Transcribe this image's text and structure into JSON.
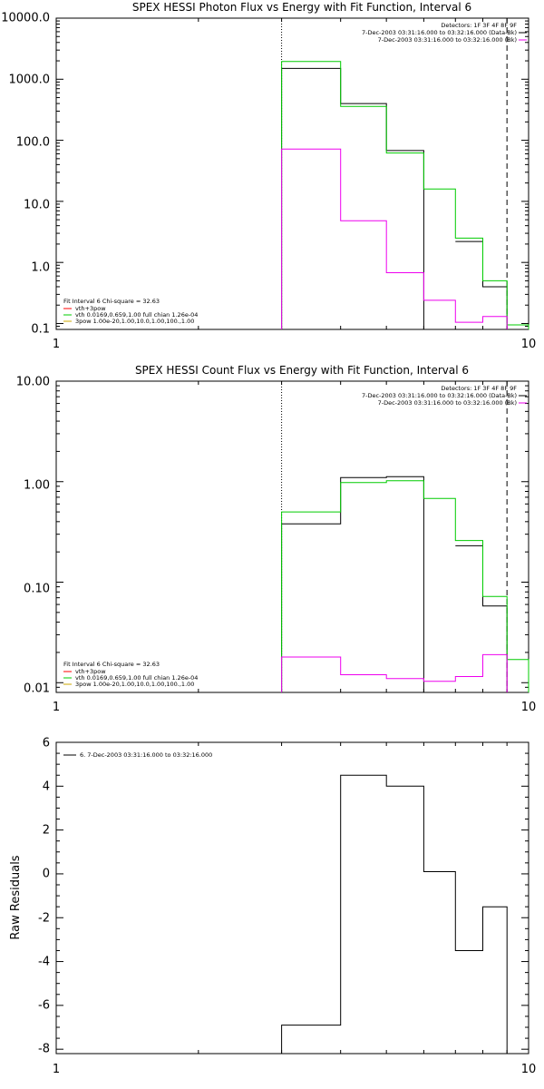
{
  "chart_data": [
    {
      "type": "line",
      "title": "SPEX HESSI Photon Flux vs Energy with Fit Function, Interval 6",
      "ylabel": "",
      "xlabel": "",
      "xscale": "log",
      "yscale": "log",
      "xlim": [
        1,
        10
      ],
      "ylim": [
        0.08,
        10000
      ],
      "x_tick_labels": [
        "1",
        "10"
      ],
      "y_tick_labels": [
        "0.1",
        "1.0",
        "10.0",
        "100.0",
        "1000.0",
        "10000.0"
      ],
      "legend_top_right": [
        "Detectors: 1F 3F 4F 8F 9F",
        "7-Dec-2003 03:31:16.000 to 03:32:16.000 (Data-Bk)",
        "7-Dec-2003 03:31:16.000 to 03:32:16.000 (Bk)"
      ],
      "legend_bottom_left": [
        "Fit Interval 6   Chi-square = 32.63",
        "vth+3pow",
        "vth 0.0169,0.659,1.00  full chian 1.26e-04",
        "3pow 1.00e-20,1.00,10.0,1.00,100.,1.00"
      ],
      "vertical_markers": {
        "dotted": 3.0,
        "dashed": 9.0
      },
      "bin_edges": [
        3.0,
        4.0,
        5.0,
        6.0,
        7.0,
        8.0,
        9.0,
        10.0
      ],
      "series": [
        {
          "color": "#000000",
          "values": [
            1500,
            400,
            68,
            null,
            2.2,
            0.4,
            null
          ]
        },
        {
          "color": "#00cc00",
          "values": [
            1950,
            360,
            62,
            16,
            2.5,
            0.5,
            0.095
          ]
        },
        {
          "color": "#ee00ee",
          "values": [
            72,
            4.8,
            0.68,
            0.24,
            0.105,
            0.13,
            null
          ]
        }
      ]
    },
    {
      "type": "line",
      "title": "SPEX HESSI Count Flux vs Energy with Fit Function, Interval 6",
      "ylabel": "",
      "xlabel": "",
      "xscale": "log",
      "yscale": "log",
      "xlim": [
        1,
        10
      ],
      "ylim": [
        0.008,
        10
      ],
      "x_tick_labels": [
        "1",
        "10"
      ],
      "y_tick_labels": [
        "0.01",
        "0.10",
        "1.00",
        "10.00"
      ],
      "legend_top_right": [
        "Detectors: 1F 3F 4F 8F 9F",
        "7-Dec-2003 03:31:16.000 to 03:32:16.000 (Data-Bk)",
        "7-Dec-2003 03:31:16.000 to 03:32:16.000 (Bk)"
      ],
      "legend_bottom_left": [
        "Fit Interval 6   Chi-square = 32.63",
        "vth+3pow",
        "vth 0.0169,0.659,1.00  full chian 1.26e-04",
        "3pow 1.00e-20,1.00,10.0,1.00,100.,1.00"
      ],
      "vertical_markers": {
        "dotted": 3.0,
        "dashed": 9.0
      },
      "bin_edges": [
        3.0,
        4.0,
        5.0,
        6.0,
        7.0,
        8.0,
        9.0,
        10.0
      ],
      "series": [
        {
          "color": "#000000",
          "values": [
            0.38,
            1.1,
            1.12,
            null,
            0.23,
            0.058,
            null
          ]
        },
        {
          "color": "#00cc00",
          "values": [
            0.5,
            0.98,
            1.02,
            0.68,
            0.26,
            0.072,
            0.017
          ]
        },
        {
          "color": "#ee00ee",
          "values": [
            0.018,
            0.012,
            0.011,
            0.0103,
            0.0115,
            0.019,
            null
          ]
        }
      ]
    },
    {
      "type": "line",
      "title": "",
      "ylabel": "Raw Residuals",
      "xlabel": "",
      "xscale": "log",
      "yscale": "linear",
      "xlim": [
        1,
        10
      ],
      "ylim": [
        -8.2,
        6
      ],
      "x_tick_labels": [
        "1",
        "10"
      ],
      "y_tick_labels": [
        "-8",
        "-6",
        "-4",
        "-2",
        "0",
        "2",
        "4",
        "6"
      ],
      "legend_top_left": [
        "6.  7-Dec-2003 03:31:16.000 to 03:32:16.000"
      ],
      "bin_edges": [
        3.0,
        4.0,
        5.0,
        6.0,
        7.0,
        8.0,
        9.0
      ],
      "series": [
        {
          "color": "#000000",
          "values": [
            -6.9,
            4.5,
            4.0,
            0.1,
            -3.5,
            -1.5
          ]
        }
      ]
    }
  ]
}
